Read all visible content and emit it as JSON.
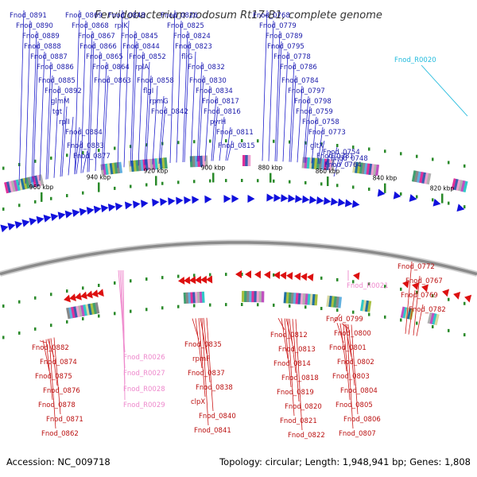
{
  "title": "Fervidobacterium nodosum Rt17-B1, complete genome",
  "footer": {
    "accession": "Accession: NC_009718",
    "summary": "Topology: circular; Length: 1,948,941 bp; Genes: 1,808"
  },
  "colors": {
    "forward_gene": "#1010dd",
    "reverse_gene": "#dd1010",
    "forward_label": "#1a1aaa",
    "reverse_label": "#bb1111",
    "rna_forward": "#22bbdd",
    "rna_reverse": "#ee88cc",
    "backbone": "#8a8a8a",
    "tick": "#2a8a2a"
  },
  "kbp_ticks": [
    "960 kbp",
    "940 kbp",
    "920 kbp",
    "900 kbp",
    "880 kbp",
    "860 kbp",
    "840 kbp",
    "820 kbp"
  ],
  "forward_labels": [
    "Fnod_0891",
    "Fnod_0890",
    "Fnod_0889",
    "Fnod_0888",
    "Fnod_0887",
    "Fnod_0886",
    "Fnod_0885",
    "Fnod_0892",
    "glmM",
    "tgt",
    "rplI",
    "Fnod_0884",
    "Fnod_0883",
    "Fnod_0877",
    "Fnod_0869",
    "Fnod_0868",
    "Fnod_0867",
    "Fnod_0866",
    "Fnod_0865",
    "Fnod_0864",
    "Fnod_0863",
    "Fnod_0848",
    "rplK",
    "Fnod_0845",
    "Fnod_0844",
    "Fnod_0852",
    "rplA",
    "Fnod_0858",
    "flgI",
    "rpmG",
    "Fnod_0842",
    "Fnod_0826",
    "Fnod_0825",
    "Fnod_0824",
    "Fnod_0823",
    "fliG",
    "Fnod_0832",
    "Fnod_0830",
    "Fnod_0834",
    "Fnod_0817",
    "Fnod_0816",
    "pyrH",
    "Fnod_0811",
    "Fnod_0815",
    "Fnod_0768",
    "Fnod_0779",
    "Fnod_0789",
    "Fnod_0795",
    "Fnod_0778",
    "Fnod_0786",
    "Fnod_0784",
    "Fnod_0797",
    "Fnod_0798",
    "Fnod_0759",
    "Fnod_0758",
    "Fnod_0773",
    "gltX",
    "Fnod_0781",
    "Fnod_0754",
    "Fnod_0764",
    "Fnod_0748"
  ],
  "forward_rna_labels": [
    "Fnod_R0020"
  ],
  "reverse_labels": [
    "Fnod_0882",
    "Fnod_0874",
    "Fnod_0875",
    "Fnod_0876",
    "Fnod_0878",
    "Fnod_0871",
    "Fnod_0862",
    "Fnod_0835",
    "rpmF",
    "Fnod_0837",
    "Fnod_0838",
    "clpX",
    "Fnod_0840",
    "Fnod_0841",
    "Fnod_0812",
    "Fnod_0813",
    "Fnod_0814",
    "Fnod_0818",
    "Fnod_0819",
    "Fnod_0820",
    "Fnod_0821",
    "Fnod_0822",
    "Fnod_0799",
    "Fnod_0800",
    "Fnod_0801",
    "Fnod_0802",
    "Fnod_0803",
    "Fnod_0804",
    "Fnod_0805",
    "Fnod_0806",
    "Fnod_0807",
    "Fnod_0772",
    "Fnod_0767",
    "Fnod_0769",
    "Fnod_0782"
  ],
  "reverse_rna_labels": [
    "Fnod_R0026",
    "Fnod_R0027",
    "Fnod_R0028",
    "Fnod_R0029",
    "Fnod_R0021"
  ]
}
